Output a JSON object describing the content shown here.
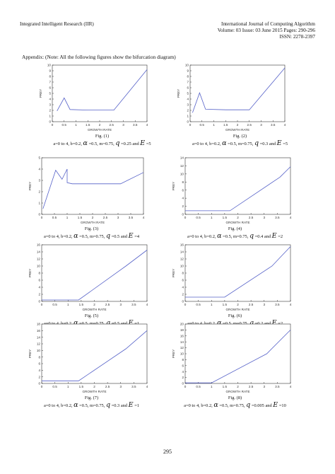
{
  "header": {
    "left": "Integrated Intelligent Research (IIR)",
    "right_line1": "International Journal of Computing Algorithm",
    "right_line2": "Volume: 03 Issue: 03 June 2015 Pages: 290-296",
    "right_line3": "ISSN: 2278-2397"
  },
  "appendix_note": "Appendix:  (Note:  All the following figures show the bifurcation diagram)",
  "page_number": "295",
  "figures": [
    {
      "label": "Fig. (1)",
      "params": {
        "prefix": "a=0 to 4, b=0.2,",
        "alpha": "=0.5, m=0.75,",
        "q": "=0.25 and",
        "E": "=5"
      },
      "chart_data": {
        "type": "line",
        "title": "",
        "xlabel": "GROWTH RATE",
        "ylabel": "PREY",
        "xlim": [
          0,
          4
        ],
        "ylim": [
          0,
          10
        ],
        "x_ticks": [
          "0",
          "0.5",
          "1",
          "1.5",
          "2",
          "2.5",
          "3",
          "3.5",
          "4"
        ],
        "y_ticks": [
          "0",
          "1",
          "2",
          "3",
          "4",
          "5",
          "6",
          "7",
          "8",
          "9",
          "10"
        ],
        "series": [
          {
            "values": [
              [
                0.2,
                1.9
              ],
              [
                0.5,
                4.2
              ],
              [
                0.75,
                2.15
              ],
              [
                1.5,
                2.05
              ],
              [
                2.6,
                2.05
              ],
              [
                4,
                9.2
              ]
            ]
          }
        ]
      }
    },
    {
      "label": "Fig. (2)",
      "params": {
        "prefix": "a=0 to 4, b=0.2,",
        "alpha": "=0.5, m=0.75,",
        "q": "=0.3 and",
        "E": "=5"
      },
      "chart_data": {
        "type": "line",
        "title": "",
        "xlabel": "GROWTH RATE",
        "ylabel": "PREY",
        "xlim": [
          0,
          4
        ],
        "ylim": [
          0,
          10
        ],
        "x_ticks": [
          "0",
          "0.5",
          "1",
          "1.5",
          "2",
          "2.5",
          "3",
          "3.5",
          "4"
        ],
        "y_ticks": [
          "0",
          "1",
          "2",
          "3",
          "4",
          "5",
          "6",
          "7",
          "8",
          "9",
          "10"
        ],
        "series": [
          {
            "values": [
              [
                0.1,
                1.6
              ],
              [
                0.4,
                5.1
              ],
              [
                0.65,
                2.2
              ],
              [
                1.5,
                2.1
              ],
              [
                2.5,
                2.1
              ],
              [
                4,
                9.5
              ]
            ]
          }
        ]
      }
    },
    {
      "label": "Fig. (3)",
      "params": {
        "prefix": "a=0 to 4, b=0.2,",
        "alpha": "=0.5, m=0.75,",
        "q": "=0.5 and",
        "E": "=4"
      },
      "chart_data": {
        "type": "line",
        "title": "",
        "xlabel": "GROWTH RATE",
        "ylabel": "PREY",
        "xlim": [
          0,
          4
        ],
        "ylim": [
          0,
          5
        ],
        "x_ticks": [
          "0",
          "0.5",
          "1",
          "1.5",
          "2",
          "2.5",
          "3",
          "3.5",
          "4"
        ],
        "y_ticks": [
          "0",
          "1",
          "2",
          "3",
          "4",
          "5"
        ],
        "series": [
          {
            "values": [
              [
                0.05,
                0.5
              ],
              [
                0.55,
                3.9
              ],
              [
                0.8,
                3.1
              ],
              [
                1.0,
                4.0
              ],
              [
                1.0,
                2.8
              ],
              [
                1.2,
                2.7
              ],
              [
                3.1,
                2.7
              ],
              [
                4,
                3.7
              ]
            ]
          }
        ]
      }
    },
    {
      "label": "Fig. (4)",
      "params": {
        "prefix": "a=0 to 4, b=0.2,",
        "alpha": "=0.5, m=0.75,",
        "q": "=0.4 and",
        "E": "=2"
      },
      "chart_data": {
        "type": "line",
        "title": "",
        "xlabel": "GROWTH RATE",
        "ylabel": "PREY",
        "xlim": [
          0,
          4
        ],
        "ylim": [
          0,
          14
        ],
        "x_ticks": [
          "0",
          "0.5",
          "1",
          "1.5",
          "2",
          "2.5",
          "3",
          "3.5",
          "4"
        ],
        "y_ticks": [
          "0",
          "2",
          "4",
          "6",
          "8",
          "10",
          "12",
          "14"
        ],
        "series": [
          {
            "values": [
              [
                0,
                0.9
              ],
              [
                1.7,
                0.9
              ],
              [
                3.6,
                9.2
              ],
              [
                4,
                11.8
              ]
            ]
          }
        ]
      }
    },
    {
      "label": "Fig. (5)",
      "params": {
        "prefix": "a=0 to 4, b=0.2,",
        "alpha": "=0.5, m=0.75,",
        "q": "=0.5 and",
        "E": "=1"
      },
      "chart_data": {
        "type": "line",
        "title": "",
        "xlabel": "GROWTH RATE",
        "ylabel": "PREY",
        "xlim": [
          0,
          4
        ],
        "ylim": [
          0,
          16
        ],
        "x_ticks": [
          "0",
          "0.5",
          "1",
          "1.5",
          "2",
          "2.5",
          "3",
          "3.5",
          "4"
        ],
        "y_ticks": [
          "0",
          "2",
          "4",
          "6",
          "8",
          "10",
          "12",
          "14",
          "16"
        ],
        "series": [
          {
            "values": [
              [
                0,
                0.4
              ],
              [
                1.4,
                0.4
              ],
              [
                3.2,
                10.0
              ],
              [
                4,
                14.5
              ]
            ]
          }
        ]
      }
    },
    {
      "label": "Fig. (6)",
      "params": {
        "prefix": "a=0 to 4, b=0.2,",
        "alpha": "=0.5, m=0.75,",
        "q": "=0.2 and",
        "E": "=2"
      },
      "chart_data": {
        "type": "line",
        "title": "",
        "xlabel": "GROWTH RATE",
        "ylabel": "PREY",
        "xlim": [
          0,
          4
        ],
        "ylim": [
          0,
          16
        ],
        "x_ticks": [
          "0",
          "0.5",
          "1",
          "1.5",
          "2",
          "2.5",
          "3",
          "3.5",
          "4"
        ],
        "y_ticks": [
          "0",
          "2",
          "4",
          "6",
          "8",
          "10",
          "12",
          "14",
          "16"
        ],
        "series": [
          {
            "values": [
              [
                0,
                1.2
              ],
              [
                1.5,
                1.2
              ],
              [
                3.3,
                10.0
              ],
              [
                4,
                15.5
              ]
            ]
          }
        ]
      }
    },
    {
      "label": "Fig. (7)",
      "params": {
        "prefix": "a=0 to 4, b=0.2,",
        "alpha": "=0.5, m=0.75,",
        "q": "=0.3 and",
        "E": "=1"
      },
      "chart_data": {
        "type": "line",
        "title": "",
        "xlabel": "GROWTH RATE",
        "ylabel": "PREY",
        "xlim": [
          0,
          4
        ],
        "ylim": [
          0,
          18
        ],
        "x_ticks": [
          "0",
          "0.5",
          "1",
          "1.5",
          "2",
          "2.5",
          "3",
          "3.5",
          "4"
        ],
        "y_ticks": [
          "0",
          "2",
          "4",
          "6",
          "8",
          "10",
          "12",
          "14",
          "16",
          "18"
        ],
        "series": [
          {
            "values": [
              [
                0,
                0.8
              ],
              [
                1.4,
                0.8
              ],
              [
                3.2,
                10.5
              ],
              [
                4,
                16.0
              ]
            ]
          }
        ]
      }
    },
    {
      "label": "Fig. (8)",
      "params": {
        "prefix": "a=0 to 4, b=0.2,",
        "alpha": "=0.5, m=0.75,",
        "q": "=0.005 and",
        "E": "=10"
      },
      "chart_data": {
        "type": "line",
        "title": "",
        "xlabel": "GROWTH RATE",
        "ylabel": "PREY",
        "xlim": [
          0,
          4
        ],
        "ylim": [
          0,
          20
        ],
        "x_ticks": [
          "0",
          "0.5",
          "1",
          "1.5",
          "2",
          "2.5",
          "3",
          "3.5",
          "4"
        ],
        "y_ticks": [
          "0",
          "2",
          "4",
          "6",
          "8",
          "10",
          "12",
          "14",
          "16",
          "18",
          "20"
        ],
        "series": [
          {
            "values": [
              [
                0,
                0.2
              ],
              [
                1.0,
                0.2
              ],
              [
                3.1,
                10.0
              ],
              [
                4,
                18.0
              ]
            ]
          }
        ]
      }
    }
  ],
  "style": {
    "line_color": "#5561c8",
    "axis_color": "#333333"
  }
}
